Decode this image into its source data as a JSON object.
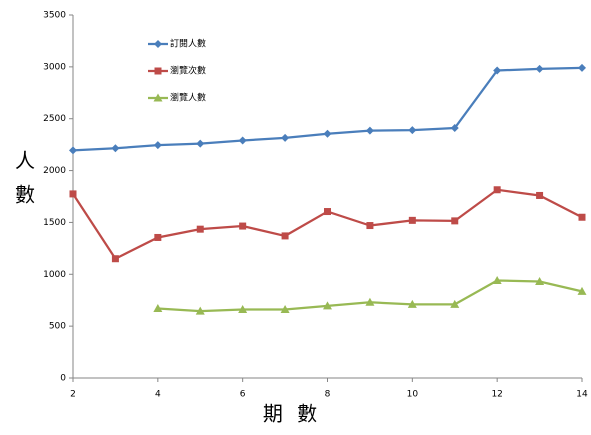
{
  "chart_data": {
    "type": "line",
    "x": [
      2,
      3,
      4,
      5,
      6,
      7,
      8,
      9,
      10,
      11,
      12,
      13,
      14
    ],
    "series": [
      {
        "name": "訂閱人數",
        "color": "#4a7ebb",
        "marker": "diamond",
        "values": [
          2195,
          2215,
          2245,
          2260,
          2290,
          2315,
          2355,
          2385,
          2390,
          2410,
          2965,
          2980,
          2990
        ]
      },
      {
        "name": "瀏覽次數",
        "color": "#be4b48",
        "marker": "square",
        "values": [
          1775,
          1150,
          1355,
          1435,
          1465,
          1370,
          1605,
          1470,
          1520,
          1515,
          1815,
          1760,
          1550
        ]
      },
      {
        "name": "瀏覽人數",
        "color": "#98b954",
        "marker": "triangle",
        "values": [
          null,
          null,
          670,
          645,
          660,
          660,
          695,
          730,
          710,
          710,
          940,
          930,
          835
        ]
      }
    ],
    "xlim": [
      2,
      14
    ],
    "xticks": [
      2,
      4,
      6,
      8,
      10,
      12,
      14
    ],
    "ylim": [
      0,
      3500
    ],
    "yticks": [
      0,
      500,
      1000,
      1500,
      2000,
      2500,
      3000,
      3500
    ],
    "xlabel": "期 數",
    "ylabel": "人數",
    "grid": false,
    "legend": "top-left"
  }
}
